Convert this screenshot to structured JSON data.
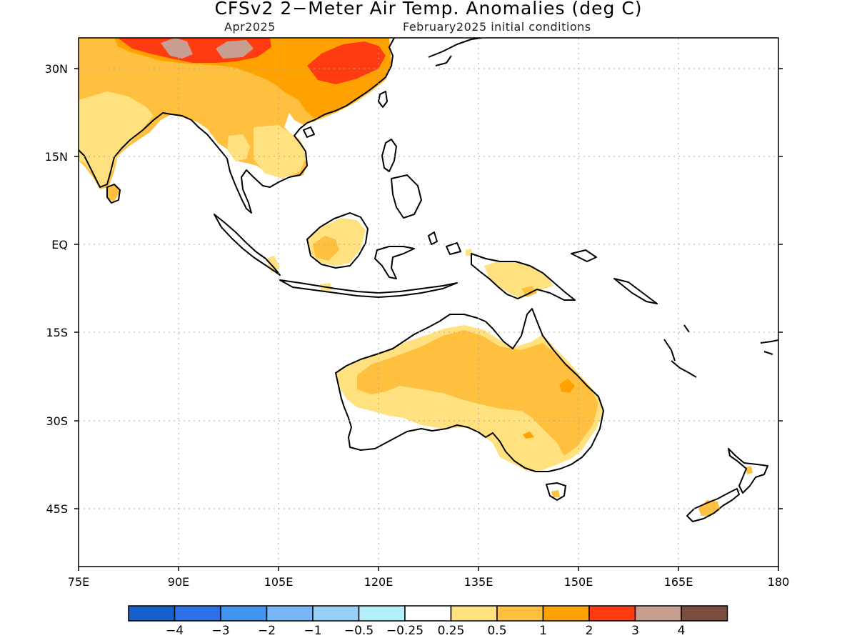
{
  "title": "CFSv2 2−Meter Air Temp. Anomalies (deg C)",
  "subtitle_left": "Apr2025",
  "subtitle_right": "February2025 initial conditions",
  "lat_labels": [
    "30N",
    "15N",
    "EQ",
    "15S",
    "30S",
    "45S"
  ],
  "lon_labels": [
    "75E",
    "90E",
    "105E",
    "120E",
    "135E",
    "150E",
    "165E",
    "180"
  ],
  "legend": {
    "colors": [
      "#1560cc",
      "#2b70e6",
      "#4096ee",
      "#77b6f7",
      "#96cff9",
      "#b3eefb",
      "#ffffff",
      "#ffe27f",
      "#ffbf3f",
      "#ffa200",
      "#ff3b11",
      "#c89e90",
      "#7a4d40"
    ],
    "labels": [
      "−4",
      "−3",
      "−2",
      "−1",
      "−0.5",
      "−0.25",
      "0.25",
      "0.5",
      "1",
      "2",
      "3",
      "4"
    ]
  },
  "colors": {
    "anom_0_25_0_5": "#ffe27f",
    "anom_0_5_1": "#ffbf3f",
    "anom_1_2": "#ffa200",
    "anom_2_3": "#ff3b11",
    "anom_3_4": "#c89e90",
    "coastline": "#000000",
    "grid": "#aaaaaa"
  }
}
